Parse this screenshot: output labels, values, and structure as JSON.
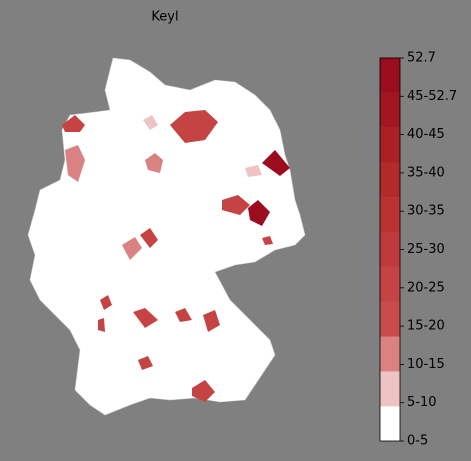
{
  "title": "Keyl",
  "colorbar": {
    "labels": [
      "52.7",
      "45-52.7",
      "40-45",
      "35-40",
      "30-35",
      "25-30",
      "20-25",
      "15-20",
      "10-15",
      "5-10",
      "0-5"
    ],
    "colors": [
      "#9a0c1e",
      "#a3161f",
      "#ab2023",
      "#b32a2a",
      "#ba3232",
      "#bf3a3a",
      "#c54343",
      "#ca4b4b",
      "#da8282",
      "#f0c3c3",
      "#ffffff"
    ]
  }
}
